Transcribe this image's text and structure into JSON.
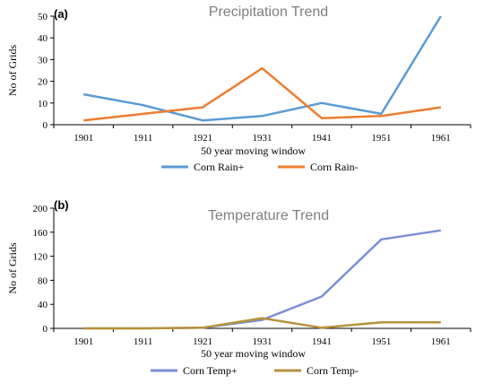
{
  "chart_data": [
    {
      "type": "line",
      "panel_label": "(a)",
      "title": "Precipitation Trend",
      "xlabel": "50 year moving window",
      "ylabel": "No of Grids",
      "categories": [
        "1901",
        "1911",
        "1921",
        "1931",
        "1941",
        "1951",
        "1961"
      ],
      "ylim": [
        0,
        50
      ],
      "yticks": [
        0,
        10,
        20,
        30,
        40,
        50
      ],
      "grid": false,
      "legend_position": "bottom",
      "series": [
        {
          "name": "Corn Rain+",
          "color": "#5b9bd5",
          "values": [
            14,
            9,
            2,
            4,
            10,
            5,
            51
          ]
        },
        {
          "name": "Corn Rain-",
          "color": "#ed7d31",
          "values": [
            2,
            5,
            8,
            26,
            3,
            4,
            8
          ]
        }
      ]
    },
    {
      "type": "line",
      "panel_label": "(b)",
      "title": "Temperature Trend",
      "xlabel": "50 year moving window",
      "ylabel": "No of Grids",
      "categories": [
        "1901",
        "1911",
        "1921",
        "1931",
        "1941",
        "1951",
        "1961"
      ],
      "ylim": [
        0,
        200
      ],
      "yticks": [
        0,
        40,
        80,
        120,
        160,
        200
      ],
      "grid": false,
      "legend_position": "bottom",
      "series": [
        {
          "name": "Corn Temp+",
          "color": "#7b8fd6",
          "values": [
            0,
            0,
            1,
            14,
            53,
            148,
            163
          ]
        },
        {
          "name": "Corn Temp-",
          "color": "#b8923a",
          "values": [
            0,
            0,
            1,
            17,
            1,
            10,
            10
          ]
        }
      ]
    }
  ]
}
